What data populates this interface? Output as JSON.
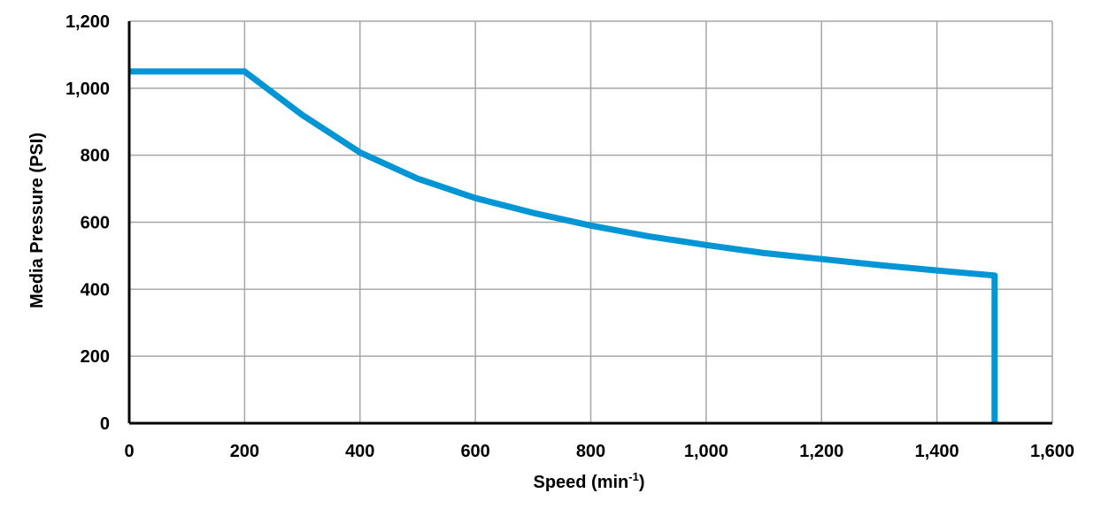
{
  "chart_data": {
    "type": "line",
    "title": "",
    "xlabel": "Speed (min",
    "xlabel_sup": "-1",
    "xlabel_tail": ")",
    "ylabel": "Media Pressure (PSI)",
    "xlim": [
      0,
      1600
    ],
    "ylim": [
      0,
      1200
    ],
    "xticks": [
      0,
      200,
      400,
      600,
      800,
      1000,
      1200,
      1400,
      1600
    ],
    "yticks": [
      0,
      200,
      400,
      600,
      800,
      1000,
      1200
    ],
    "xtick_labels": [
      "0",
      "200",
      "400",
      "600",
      "800",
      "1,000",
      "1,200",
      "1,400",
      "1,600"
    ],
    "ytick_labels": [
      "0",
      "200",
      "400",
      "600",
      "800",
      "1,000",
      "1,200"
    ],
    "grid": true,
    "legend": "none",
    "series": [
      {
        "color": "#0096d6",
        "points": [
          [
            0,
            1050
          ],
          [
            200,
            1050
          ],
          [
            300,
            920
          ],
          [
            400,
            808
          ],
          [
            500,
            730
          ],
          [
            600,
            672
          ],
          [
            700,
            628
          ],
          [
            800,
            590
          ],
          [
            900,
            558
          ],
          [
            1000,
            532
          ],
          [
            1100,
            508
          ],
          [
            1200,
            490
          ],
          [
            1300,
            472
          ],
          [
            1400,
            456
          ],
          [
            1500,
            441
          ],
          [
            1500,
            0
          ]
        ]
      }
    ]
  }
}
